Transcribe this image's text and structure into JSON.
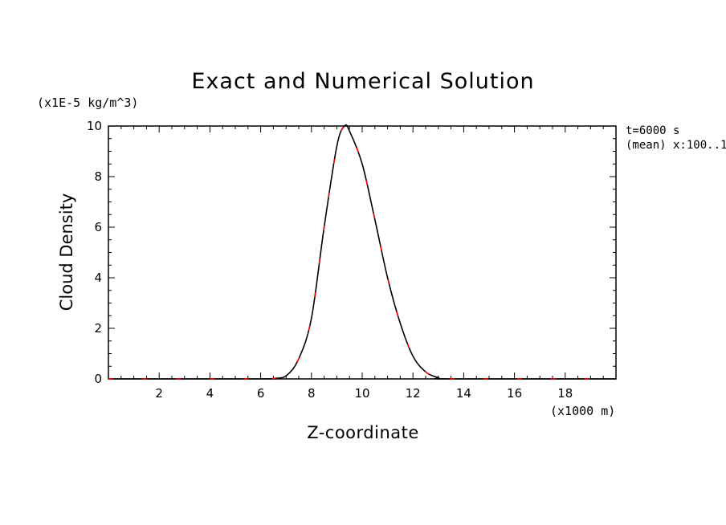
{
  "labels": {
    "y_unit": "(x1E-5 kg/m^3)",
    "x_unit": "(x1000 m)",
    "info_time": "t=6000 s",
    "info_mean": "(mean) x:100..1"
  },
  "chart_data": {
    "type": "line",
    "title": "Exact and Numerical Solution",
    "xlabel": "Z-coordinate",
    "ylabel": "Cloud Density",
    "xlim": [
      0,
      20
    ],
    "ylim": [
      0,
      10
    ],
    "xticks": [
      2,
      4,
      6,
      8,
      10,
      12,
      14,
      16,
      18
    ],
    "yticks": [
      0,
      2,
      4,
      6,
      8,
      10
    ],
    "x_minor_step": 0.5,
    "y_minor_step": 0.5,
    "grid": false,
    "series": [
      {
        "style": "solid",
        "color": "#000000",
        "x": [
          0,
          6,
          6.5,
          7,
          7.5,
          8,
          8.5,
          9,
          9.3,
          9.5,
          10,
          10.5,
          11,
          11.5,
          12,
          12.5,
          13,
          13.5,
          20
        ],
        "y": [
          0,
          0,
          0.02,
          0.12,
          0.8,
          2.4,
          6.0,
          9.2,
          10.0,
          9.8,
          8.5,
          6.3,
          4.0,
          2.2,
          0.9,
          0.28,
          0.05,
          0,
          0
        ]
      },
      {
        "style": "dashed",
        "color": "#ff0000",
        "x": [
          0,
          6,
          6.5,
          7,
          7.5,
          8,
          8.5,
          9,
          9.3,
          9.5,
          10,
          10.5,
          11,
          11.5,
          12,
          12.5,
          13,
          13.5,
          20
        ],
        "y": [
          0,
          0,
          0.02,
          0.12,
          0.8,
          2.4,
          6.0,
          9.2,
          10.0,
          9.8,
          8.5,
          6.3,
          4.0,
          2.2,
          0.9,
          0.28,
          0.05,
          0,
          0
        ]
      }
    ]
  }
}
